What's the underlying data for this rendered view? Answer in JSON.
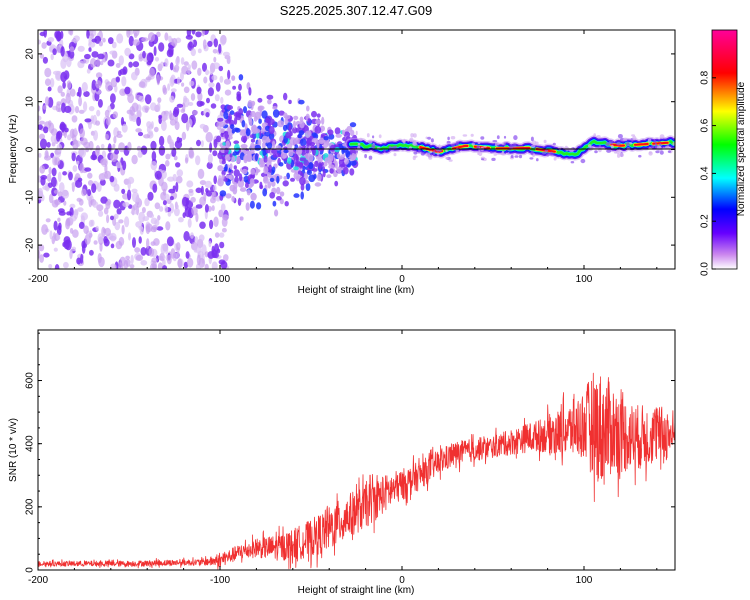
{
  "chart_data": [
    {
      "type": "heatmap",
      "title": "S225.2025.307.12.47.G09",
      "xlabel": "Height of straight line (km)",
      "ylabel": "Frequency (Hz)",
      "xlim": [
        -200,
        150
      ],
      "ylim": [
        -25,
        25
      ],
      "x_ticks": [
        -200,
        -100,
        0,
        100
      ],
      "y_ticks": [
        -20,
        -10,
        0,
        10,
        20
      ],
      "colorbar": {
        "label": "Normalized spectral amplitude",
        "range": [
          0,
          1
        ],
        "ticks": [
          0.0,
          0.2,
          0.4,
          0.6,
          0.8
        ],
        "colors": [
          "#ffffff",
          "#cc88ee",
          "#6600ff",
          "#0000ff",
          "#00ffff",
          "#00ff00",
          "#ffff00",
          "#ff0000",
          "#ff0099"
        ]
      },
      "line_color": "#000000",
      "tone_track": [
        [
          -25,
          1.0
        ],
        [
          -10,
          0.3
        ],
        [
          0,
          1.0
        ],
        [
          10,
          0.5
        ],
        [
          20,
          -0.5
        ],
        [
          35,
          0.8
        ],
        [
          50,
          0.2
        ],
        [
          70,
          0.3
        ],
        [
          85,
          -0.5
        ],
        [
          95,
          -1.2
        ],
        [
          105,
          1.5
        ],
        [
          120,
          0.8
        ],
        [
          150,
          1.5
        ]
      ]
    },
    {
      "type": "line",
      "xlabel": "Height of straight line (km)",
      "ylabel": "SNR (10 * v/v)",
      "xlim": [
        -200,
        150
      ],
      "ylim": [
        0,
        760
      ],
      "x_ticks": [
        -200,
        -100,
        0,
        100
      ],
      "y_ticks": [
        0,
        200,
        400,
        600
      ],
      "line_color": "#f03030",
      "series": [
        {
          "name": "SNR",
          "x": [
            -200,
            -150,
            -110,
            -100,
            -90,
            -80,
            -70,
            -60,
            -50,
            -40,
            -30,
            -20,
            -10,
            0,
            10,
            20,
            30,
            40,
            50,
            60,
            70,
            80,
            90,
            95,
            100,
            105,
            110,
            115,
            120,
            130,
            140,
            150
          ],
          "values": [
            20,
            20,
            25,
            30,
            55,
            70,
            70,
            80,
            100,
            130,
            170,
            200,
            240,
            270,
            300,
            340,
            370,
            380,
            390,
            405,
            420,
            430,
            440,
            450,
            460,
            470,
            440,
            450,
            430,
            420,
            430,
            430
          ]
        }
      ],
      "spread": [
        [
          -200,
          8
        ],
        [
          -110,
          10
        ],
        [
          -100,
          20
        ],
        [
          -80,
          30
        ],
        [
          -60,
          50
        ],
        [
          -40,
          70
        ],
        [
          -20,
          70
        ],
        [
          0,
          50
        ],
        [
          20,
          40
        ],
        [
          50,
          35
        ],
        [
          75,
          50
        ],
        [
          90,
          80
        ],
        [
          100,
          110
        ],
        [
          105,
          160
        ],
        [
          110,
          190
        ],
        [
          115,
          150
        ],
        [
          125,
          110
        ],
        [
          150,
          80
        ]
      ]
    }
  ]
}
